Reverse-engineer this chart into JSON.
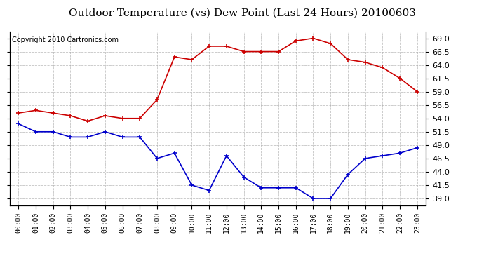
{
  "title": "Outdoor Temperature (vs) Dew Point (Last 24 Hours) 20100603",
  "copyright_text": "Copyright 2010 Cartronics.com",
  "x_labels": [
    "00:00",
    "01:00",
    "02:00",
    "03:00",
    "04:00",
    "05:00",
    "06:00",
    "07:00",
    "08:00",
    "09:00",
    "10:00",
    "11:00",
    "12:00",
    "13:00",
    "14:00",
    "15:00",
    "16:00",
    "17:00",
    "18:00",
    "19:00",
    "20:00",
    "21:00",
    "22:00",
    "23:00"
  ],
  "temp_data": [
    55.0,
    55.5,
    55.0,
    54.5,
    53.5,
    54.5,
    54.0,
    54.0,
    57.5,
    65.5,
    65.0,
    67.5,
    67.5,
    66.5,
    66.5,
    66.5,
    68.5,
    69.0,
    68.0,
    65.0,
    64.5,
    63.5,
    61.5,
    59.0
  ],
  "dew_data": [
    53.0,
    51.5,
    51.5,
    50.5,
    50.5,
    51.5,
    50.5,
    50.5,
    46.5,
    47.5,
    41.5,
    40.5,
    47.0,
    43.0,
    41.0,
    41.0,
    41.0,
    39.0,
    39.0,
    43.5,
    46.5,
    47.0,
    47.5,
    48.5
  ],
  "temp_color": "#cc0000",
  "dew_color": "#0000cc",
  "background_color": "#ffffff",
  "grid_color": "#aaaaaa",
  "ylim": [
    37.75,
    70.25
  ],
  "yticks": [
    39.0,
    41.5,
    44.0,
    46.5,
    49.0,
    51.5,
    54.0,
    56.5,
    59.0,
    61.5,
    64.0,
    66.5,
    69.0
  ],
  "title_fontsize": 11,
  "copyright_fontsize": 7
}
